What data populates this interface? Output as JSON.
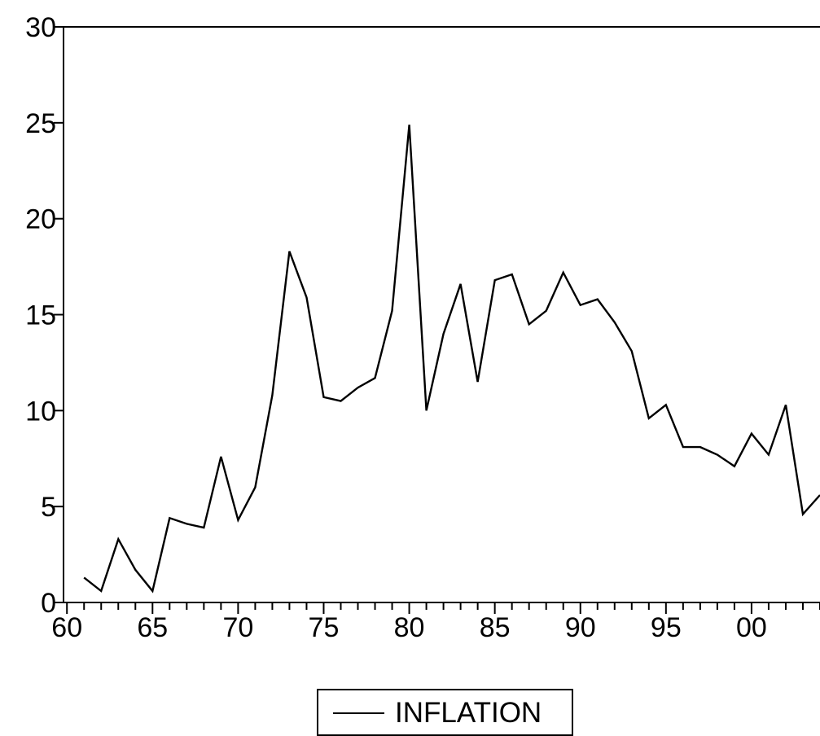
{
  "chart_data": {
    "type": "line",
    "x": [
      1961,
      1962,
      1963,
      1964,
      1965,
      1966,
      1967,
      1968,
      1969,
      1970,
      1971,
      1972,
      1973,
      1974,
      1975,
      1976,
      1977,
      1978,
      1979,
      1980,
      1981,
      1982,
      1983,
      1984,
      1985,
      1986,
      1987,
      1988,
      1989,
      1990,
      1991,
      1992,
      1993,
      1994,
      1995,
      1996,
      1997,
      1998,
      1999,
      2000,
      2001,
      2002,
      2003,
      2004
    ],
    "series": [
      {
        "name": "INFLATION",
        "color": "#000000",
        "values": [
          1.3,
          0.6,
          3.3,
          1.7,
          0.6,
          4.4,
          4.1,
          3.9,
          7.6,
          4.3,
          6.0,
          10.8,
          18.3,
          15.9,
          10.7,
          10.5,
          11.2,
          11.7,
          15.2,
          24.9,
          10.0,
          14.0,
          16.6,
          11.5,
          16.8,
          17.1,
          14.5,
          15.2,
          17.2,
          15.5,
          15.8,
          14.6,
          13.1,
          9.6,
          10.3,
          8.1,
          8.1,
          7.7,
          7.1,
          8.8,
          7.7,
          10.3,
          4.6,
          5.6
        ]
      }
    ],
    "x_tick_values": [
      1960,
      1965,
      1970,
      1975,
      1980,
      1985,
      1990,
      1995,
      2000
    ],
    "x_tick_labels": [
      "60",
      "65",
      "70",
      "75",
      "80",
      "85",
      "90",
      "95",
      "00"
    ],
    "y_tick_values": [
      0,
      5,
      10,
      15,
      20,
      25,
      30
    ],
    "y_tick_labels": [
      "0",
      "5",
      "10",
      "15",
      "20",
      "25",
      "30"
    ],
    "xlim": [
      1959.8,
      2004
    ],
    "ylim": [
      0,
      30
    ],
    "grid": false,
    "legend_position": "bottom-center",
    "title": "",
    "xlabel": "",
    "ylabel": ""
  },
  "legend": {
    "label": "INFLATION"
  }
}
